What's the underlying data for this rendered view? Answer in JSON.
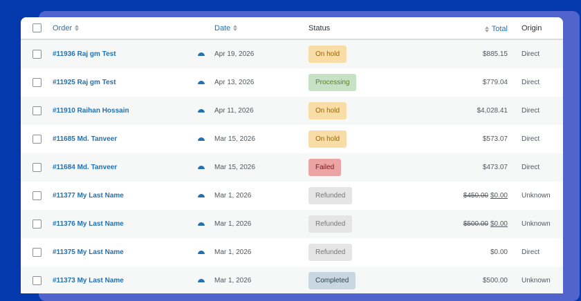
{
  "colors": {
    "background": "#0339ad",
    "back_card": "#5163cd",
    "link": "#2271b1"
  },
  "table": {
    "headers": {
      "order": "Order",
      "date": "Date",
      "status": "Status",
      "total": "Total",
      "origin": "Origin"
    },
    "rows": [
      {
        "order": "#11936 Raj gm Test",
        "date": "Apr 19, 2026",
        "status": "On hold",
        "status_bg": "#f8dda7",
        "status_fg": "#94660c",
        "total_old": "",
        "total": "$885.15",
        "origin": "Direct"
      },
      {
        "order": "#11925 Raj gm Test",
        "date": "Apr 13, 2026",
        "status": "Processing",
        "status_bg": "#c6e1c6",
        "status_fg": "#5b841b",
        "total_old": "",
        "total": "$779.04",
        "origin": "Direct"
      },
      {
        "order": "#11910 Raihan Hossain",
        "date": "Apr 11, 2026",
        "status": "On hold",
        "status_bg": "#f8dda7",
        "status_fg": "#94660c",
        "total_old": "",
        "total": "$4,028.41",
        "origin": "Direct"
      },
      {
        "order": "#11685 Md. Tanveer",
        "date": "Mar 15, 2026",
        "status": "On hold",
        "status_bg": "#f8dda7",
        "status_fg": "#94660c",
        "total_old": "",
        "total": "$573.07",
        "origin": "Direct"
      },
      {
        "order": "#11684 Md. Tanveer",
        "date": "Mar 15, 2026",
        "status": "Failed",
        "status_bg": "#eba3a3",
        "status_fg": "#761919",
        "total_old": "",
        "total": "$473.07",
        "origin": "Direct"
      },
      {
        "order": "#11377 My Last Name",
        "date": "Mar 1, 2026",
        "status": "Refunded",
        "status_bg": "#e5e5e5",
        "status_fg": "#777777",
        "total_old": "$450.00",
        "total": "$0.00",
        "origin": "Unknown"
      },
      {
        "order": "#11376 My Last Name",
        "date": "Mar 1, 2026",
        "status": "Refunded",
        "status_bg": "#e5e5e5",
        "status_fg": "#777777",
        "total_old": "$500.00",
        "total": "$0.00",
        "origin": "Unknown"
      },
      {
        "order": "#11375 My Last Name",
        "date": "Mar 1, 2026",
        "status": "Refunded",
        "status_bg": "#e5e5e5",
        "status_fg": "#777777",
        "total_old": "",
        "total": "$0.00",
        "origin": "Direct"
      },
      {
        "order": "#11373 My Last Name",
        "date": "Mar 1, 2026",
        "status": "Completed",
        "status_bg": "#c8d7e1",
        "status_fg": "#2e4453",
        "total_old": "",
        "total": "$500.00",
        "origin": "Unknown"
      }
    ]
  }
}
